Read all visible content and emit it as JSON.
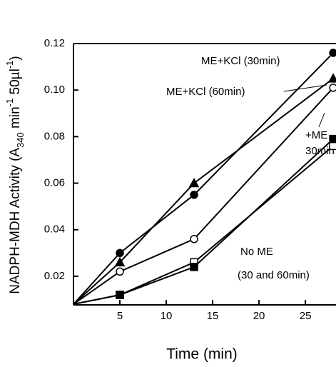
{
  "chart_data": {
    "type": "line",
    "xlabel": "Time (min)",
    "ylabel": [
      "NADPH-MDH Activity (A",
      "340",
      " min",
      "-1",
      " 50µl",
      "-1",
      ")"
    ],
    "x": [
      0,
      5,
      13,
      28
    ],
    "series": [
      {
        "color": "#000",
        "marker": "filled-circle",
        "values": [
          0.008,
          0.03,
          0.055,
          0.116
        ]
      },
      {
        "color": "#000",
        "marker": "filled-triangle",
        "values": [
          0.008,
          0.026,
          0.06,
          0.105
        ]
      },
      {
        "color": "#000",
        "marker": "open-circle",
        "values": [
          0.008,
          0.022,
          0.036,
          0.101
        ]
      },
      {
        "color": "#000",
        "marker": "open-square",
        "values": [
          0.008,
          0.012,
          0.026,
          0.076
        ]
      },
      {
        "color": "#000",
        "marker": "filled-square",
        "values": [
          0.008,
          0.012,
          0.024,
          0.079
        ]
      }
    ],
    "annotations": [
      "ME+KCl (30min)",
      "ME+KCl (60min)",
      "+ME",
      "30min",
      "No ME",
      "(30 and 60min)"
    ],
    "xlim": [
      0,
      28.3
    ],
    "ylim": [
      0.0077,
      0.12
    ],
    "xticks": [
      5,
      10,
      15,
      20,
      25
    ],
    "yticks": [
      0.02,
      0.04,
      0.06,
      0.08,
      {
        "value": 0.1,
        "label": "0.10"
      },
      0.12
    ]
  }
}
